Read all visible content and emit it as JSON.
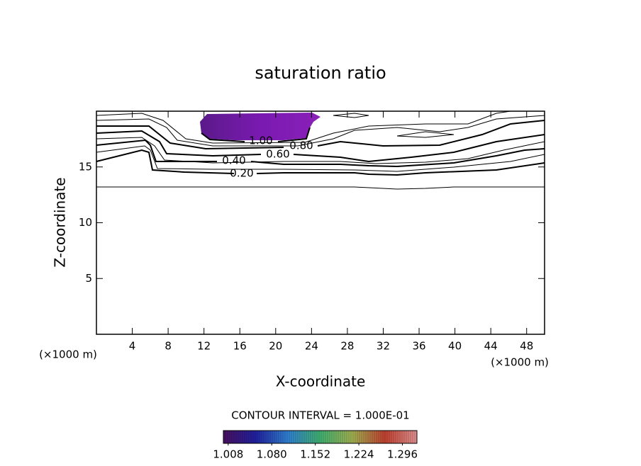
{
  "chart_data": {
    "type": "contour",
    "title": "saturation ratio",
    "x_label": "X-coordinate",
    "y_label": "Z-coordinate",
    "x_unit_left": "(×1000 m)",
    "x_unit_right": "(×1000 m)",
    "info": "CONTOUR INTERVAL = 1.000E-01",
    "xlim": [
      0,
      50
    ],
    "xticks": [
      4,
      8,
      12,
      16,
      20,
      24,
      28,
      32,
      36,
      40,
      44,
      48
    ],
    "ylim": [
      0,
      20
    ],
    "yticks": [
      5,
      10,
      15
    ],
    "contour_levels": [
      {
        "value": 0.2,
        "label": "0.20"
      },
      {
        "value": 0.4,
        "label": "0.40"
      },
      {
        "value": 0.6,
        "label": "0.60"
      },
      {
        "value": 0.8,
        "label": "0.80"
      },
      {
        "value": 1.0,
        "label": "1.00"
      }
    ],
    "colorbar": {
      "lim": [
        1.0,
        1.32
      ],
      "colors": [
        "#4a1060",
        "#2020a0",
        "#3080d0",
        "#40b070",
        "#a0b050",
        "#c04030",
        "#e09090"
      ],
      "ticks": [
        1.008,
        {
          "value": 1.08,
          "label": "1.080"
        },
        1.152,
        1.224,
        1.296
      ]
    }
  }
}
